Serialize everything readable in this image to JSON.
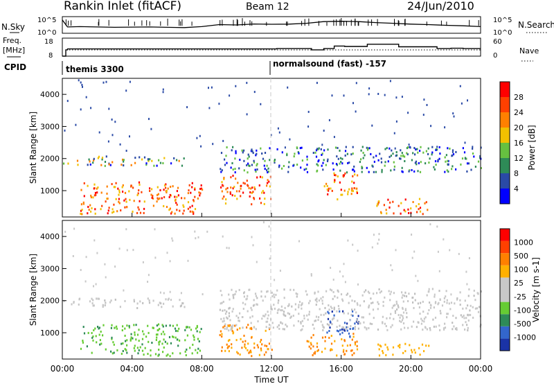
{
  "header": {
    "title": "Rankin Inlet (fitACF)",
    "beam": "Beam 12",
    "date": "24/Jun/2010"
  },
  "labels": {
    "nsky": "N.Sky",
    "freq": "Freq.",
    "mhz": "[MHz]",
    "cpid": "CPID",
    "nsearch": "N.Search",
    "nave": "Nave",
    "nsky_ticks": [
      "10^5",
      "10^0"
    ],
    "nsearch_ticks": [
      "10^5",
      "10^0"
    ],
    "freq_ticks": [
      "18",
      "8"
    ],
    "nave_ticks": [
      "60",
      "0"
    ],
    "cpid_1": "themis 3300",
    "cpid_2": "normalsound (fast) -157"
  },
  "colors": {
    "power_scale": [
      "#0000ff",
      "#2a4aa6",
      "#2e8b57",
      "#66c040",
      "#f2c000",
      "#ff8000",
      "#ff4000",
      "#ff0000"
    ],
    "velocity_scale": [
      "#ff0000",
      "#ff4000",
      "#ff8000",
      "#ffb000",
      "#c8c8c8",
      "#c8c8c8",
      "#66cc33",
      "#2e8b57",
      "#3366cc",
      "#1a33a6"
    ]
  },
  "chart_data": [
    {
      "type": "line",
      "panel": "N.Sky / N.Search",
      "x_range_hours": [
        0,
        24
      ],
      "ylabel_left": "N.Sky",
      "ylabel_right": "N.Search",
      "series": [
        {
          "x": [
            0,
            0.3,
            1,
            2,
            3,
            4,
            5,
            6,
            7,
            8,
            9,
            10,
            11,
            12,
            13,
            14,
            15,
            16,
            17,
            18,
            19,
            20,
            21,
            22,
            23,
            24
          ],
          "y_fraction": [
            0.2,
            0.62,
            0.6,
            0.62,
            0.64,
            0.63,
            0.62,
            0.64,
            0.66,
            0.6,
            0.48,
            0.5,
            0.44,
            0.46,
            0.45,
            0.4,
            0.3,
            0.28,
            0.3,
            0.36,
            0.4,
            0.45,
            0.48,
            0.52,
            0.55,
            0.6
          ]
        }
      ]
    },
    {
      "type": "line",
      "panel": "Freq. / Nave",
      "x_range_hours": [
        0,
        24
      ],
      "ylabel_left": "Freq. [MHz]",
      "ylabel_right": "Nave",
      "ylim_left": [
        8,
        18
      ],
      "ylim_right": [
        0,
        60
      ],
      "series": [
        {
          "x": [
            0,
            0.2,
            0.3,
            12,
            12.3,
            14,
            14.3,
            15,
            15.6,
            16.2,
            17.5,
            19,
            19.3,
            20,
            21.5,
            22.3,
            23,
            24
          ],
          "y": [
            8,
            11.5,
            12,
            12,
            12.2,
            12.2,
            11.5,
            12.2,
            13.6,
            13.4,
            14.6,
            14.6,
            13.2,
            13.2,
            12.2,
            12.4,
            12.2,
            12.2
          ]
        }
      ]
    },
    {
      "type": "heatmap",
      "title": "Power",
      "ylabel": "Slant Range [km]",
      "colorbar_label": "Power [dB]",
      "colorbar_ticks": [
        "4",
        "8",
        "12",
        "16",
        "20",
        "24",
        "28"
      ],
      "x_range_hours": [
        0,
        24
      ],
      "y_range_km": [
        180,
        4500
      ],
      "y_ticks": [
        "1000",
        "2000",
        "3000",
        "4000"
      ],
      "x_ticks": [
        "00:00",
        "04:00",
        "08:00",
        "12:00",
        "16:00",
        "20:00",
        "00:00"
      ],
      "features": [
        {
          "t0": 0,
          "t1": 7,
          "r0": 1800,
          "r1": 2100,
          "level": "mixed"
        },
        {
          "t0": 1,
          "t1": 8,
          "r0": 300,
          "r1": 1300,
          "level": "strong"
        },
        {
          "t0": 9,
          "t1": 12,
          "r0": 600,
          "r1": 1500,
          "level": "strong"
        },
        {
          "t0": 15,
          "t1": 17,
          "r0": 700,
          "r1": 1600,
          "level": "strong"
        },
        {
          "t0": 18,
          "t1": 21,
          "r0": 300,
          "r1": 800,
          "level": "strong"
        },
        {
          "t0": 9,
          "t1": 24,
          "r0": 1600,
          "r1": 2400,
          "level": "weak"
        }
      ]
    },
    {
      "type": "heatmap",
      "title": "Velocity",
      "ylabel": "Slant Range [km]",
      "xlabel": "Time UT",
      "colorbar_label": "Velocity [m s-1]",
      "colorbar_ticks": [
        "1000",
        "500",
        "100",
        "25",
        "-25",
        "-100",
        "-500",
        "-1000"
      ],
      "x_range_hours": [
        0,
        24
      ],
      "y_range_km": [
        180,
        4500
      ],
      "y_ticks": [
        "1000",
        "2000",
        "3000",
        "4000"
      ],
      "x_ticks": [
        "00:00",
        "04:00",
        "08:00",
        "12:00",
        "16:00",
        "20:00",
        "00:00"
      ],
      "features": [
        {
          "t0": 0,
          "t1": 7,
          "r0": 1800,
          "r1": 2100,
          "level": "ground"
        },
        {
          "t0": 1,
          "t1": 8,
          "r0": 300,
          "r1": 1300,
          "level": "green"
        },
        {
          "t0": 9,
          "t1": 12,
          "r0": 300,
          "r1": 1300,
          "level": "orange"
        },
        {
          "t0": 14,
          "t1": 17,
          "r0": 300,
          "r1": 1000,
          "level": "orange"
        },
        {
          "t0": 15,
          "t1": 17,
          "r0": 900,
          "r1": 1700,
          "level": "blue"
        },
        {
          "t0": 18,
          "t1": 21,
          "r0": 300,
          "r1": 700,
          "level": "lightorange"
        },
        {
          "t0": 9,
          "t1": 24,
          "r0": 1100,
          "r1": 2400,
          "level": "ground"
        }
      ]
    }
  ]
}
